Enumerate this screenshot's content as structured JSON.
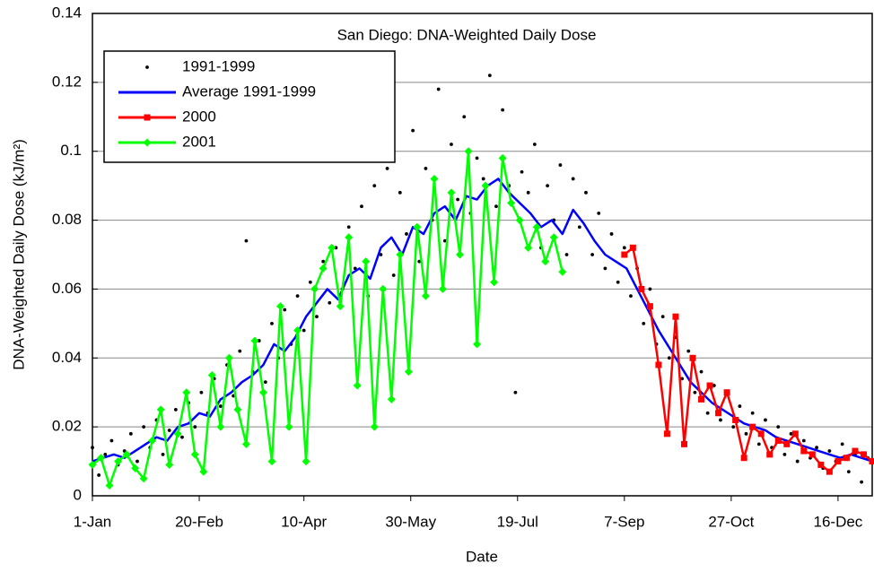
{
  "chart_data": {
    "type": "line",
    "title": "San Diego: DNA-Weighted Daily Dose",
    "x_label": "Date",
    "y_label": "DNA-Weighted Daily Dose (kJ/m²)",
    "xlim": [
      1,
      366
    ],
    "xticks": [
      {
        "value": 1,
        "label": "1-Jan"
      },
      {
        "value": 51,
        "label": "20-Feb"
      },
      {
        "value": 100,
        "label": "10-Apr"
      },
      {
        "value": 150,
        "label": "30-May"
      },
      {
        "value": 200,
        "label": "19-Jul"
      },
      {
        "value": 250,
        "label": "7-Sep"
      },
      {
        "value": 300,
        "label": "27-Oct"
      },
      {
        "value": 350,
        "label": "16-Dec"
      }
    ],
    "ylim": [
      0,
      0.14
    ],
    "yticks": [
      0,
      0.02,
      0.04,
      0.06,
      0.08,
      0.1,
      0.12,
      0.14
    ],
    "grid": true,
    "legend": "upper-left",
    "series": [
      {
        "name": "1991-1999",
        "color": "#000000",
        "line": false,
        "marker": "dot",
        "x": [
          1,
          4,
          7,
          10,
          13,
          16,
          19,
          22,
          25,
          28,
          31,
          34,
          37,
          40,
          43,
          46,
          49,
          52,
          55,
          58,
          61,
          64,
          67,
          70,
          73,
          76,
          79,
          82,
          85,
          88,
          91,
          94,
          97,
          100,
          103,
          106,
          109,
          112,
          115,
          118,
          121,
          124,
          127,
          130,
          133,
          136,
          139,
          142,
          145,
          148,
          151,
          154,
          157,
          160,
          163,
          166,
          169,
          172,
          175,
          178,
          181,
          184,
          187,
          190,
          193,
          196,
          199,
          202,
          205,
          208,
          211,
          214,
          217,
          220,
          223,
          226,
          229,
          232,
          235,
          238,
          241,
          244,
          247,
          250,
          253,
          256,
          259,
          262,
          265,
          268,
          271,
          274,
          277,
          280,
          283,
          286,
          289,
          292,
          295,
          298,
          301,
          304,
          307,
          310,
          313,
          316,
          319,
          322,
          325,
          328,
          331,
          334,
          337,
          340,
          343,
          346,
          349,
          352,
          355,
          358,
          361,
          364
        ],
        "values": [
          0.014,
          0.006,
          0.012,
          0.016,
          0.009,
          0.013,
          0.018,
          0.01,
          0.02,
          0.014,
          0.022,
          0.012,
          0.019,
          0.025,
          0.017,
          0.027,
          0.02,
          0.03,
          0.024,
          0.034,
          0.026,
          0.038,
          0.029,
          0.042,
          0.074,
          0.036,
          0.045,
          0.033,
          0.05,
          0.04,
          0.054,
          0.044,
          0.058,
          0.048,
          0.062,
          0.052,
          0.068,
          0.056,
          0.072,
          0.06,
          0.078,
          0.066,
          0.084,
          0.058,
          0.09,
          0.07,
          0.095,
          0.064,
          0.088,
          0.076,
          0.106,
          0.068,
          0.095,
          0.08,
          0.118,
          0.074,
          0.102,
          0.086,
          0.11,
          0.082,
          0.098,
          0.092,
          0.122,
          0.084,
          0.112,
          0.09,
          0.03,
          0.094,
          0.088,
          0.102,
          0.072,
          0.09,
          0.08,
          0.096,
          0.07,
          0.092,
          0.078,
          0.088,
          0.07,
          0.082,
          0.066,
          0.076,
          0.062,
          0.072,
          0.058,
          0.066,
          0.05,
          0.06,
          0.044,
          0.052,
          0.04,
          0.046,
          0.034,
          0.042,
          0.03,
          0.036,
          0.024,
          0.032,
          0.022,
          0.03,
          0.02,
          0.026,
          0.018,
          0.024,
          0.015,
          0.022,
          0.014,
          0.02,
          0.012,
          0.018,
          0.01,
          0.016,
          0.011,
          0.014,
          0.008,
          0.013,
          0.01,
          0.015,
          0.007,
          0.012,
          0.004,
          0.011
        ]
      },
      {
        "name": "Average 1991-1999",
        "color": "#0000ff",
        "line": true,
        "marker": "none",
        "x": [
          1,
          6,
          11,
          16,
          21,
          26,
          31,
          36,
          41,
          46,
          51,
          56,
          61,
          66,
          71,
          76,
          81,
          86,
          91,
          96,
          101,
          106,
          111,
          116,
          121,
          126,
          131,
          136,
          141,
          146,
          151,
          156,
          161,
          166,
          171,
          176,
          181,
          186,
          191,
          196,
          201,
          206,
          211,
          216,
          221,
          226,
          231,
          236,
          241,
          246,
          251,
          256,
          261,
          266,
          271,
          276,
          281,
          286,
          291,
          296,
          301,
          306,
          311,
          316,
          321,
          326,
          331,
          336,
          341,
          346,
          351,
          356,
          361,
          366
        ],
        "values": [
          0.01,
          0.011,
          0.012,
          0.011,
          0.013,
          0.015,
          0.017,
          0.016,
          0.02,
          0.021,
          0.024,
          0.023,
          0.028,
          0.03,
          0.033,
          0.035,
          0.038,
          0.044,
          0.042,
          0.046,
          0.052,
          0.056,
          0.06,
          0.057,
          0.064,
          0.066,
          0.063,
          0.072,
          0.075,
          0.07,
          0.078,
          0.076,
          0.082,
          0.084,
          0.08,
          0.087,
          0.086,
          0.09,
          0.092,
          0.088,
          0.085,
          0.082,
          0.078,
          0.08,
          0.076,
          0.083,
          0.079,
          0.074,
          0.07,
          0.068,
          0.066,
          0.06,
          0.054,
          0.048,
          0.043,
          0.038,
          0.033,
          0.03,
          0.027,
          0.025,
          0.023,
          0.021,
          0.02,
          0.019,
          0.017,
          0.016,
          0.015,
          0.014,
          0.013,
          0.012,
          0.011,
          0.012,
          0.011,
          0.01
        ]
      },
      {
        "name": "2000",
        "color": "#ff0000",
        "line": true,
        "marker": "square",
        "x": [
          250,
          254,
          258,
          262,
          266,
          270,
          274,
          278,
          282,
          286,
          290,
          294,
          298,
          302,
          306,
          310,
          314,
          318,
          322,
          326,
          330,
          334,
          338,
          342,
          346,
          350,
          354,
          358,
          362,
          366
        ],
        "values": [
          0.07,
          0.072,
          0.06,
          0.055,
          0.038,
          0.018,
          0.052,
          0.015,
          0.04,
          0.028,
          0.032,
          0.024,
          0.03,
          0.022,
          0.011,
          0.02,
          0.018,
          0.012,
          0.016,
          0.015,
          0.018,
          0.013,
          0.012,
          0.009,
          0.007,
          0.01,
          0.011,
          0.013,
          0.012,
          0.01
        ]
      },
      {
        "name": "2001",
        "color": "#00ff00",
        "line": true,
        "marker": "diamond",
        "x": [
          1,
          5,
          9,
          13,
          17,
          21,
          25,
          29,
          33,
          37,
          41,
          45,
          49,
          53,
          57,
          61,
          65,
          69,
          73,
          77,
          81,
          85,
          89,
          93,
          97,
          101,
          105,
          109,
          113,
          117,
          121,
          125,
          129,
          133,
          137,
          141,
          145,
          149,
          153,
          157,
          161,
          165,
          169,
          173,
          177,
          181,
          185,
          189,
          193,
          197,
          201,
          205,
          209,
          213,
          217,
          221
        ],
        "values": [
          0.009,
          0.011,
          0.003,
          0.01,
          0.012,
          0.008,
          0.005,
          0.016,
          0.025,
          0.009,
          0.018,
          0.03,
          0.012,
          0.007,
          0.035,
          0.02,
          0.04,
          0.025,
          0.015,
          0.045,
          0.03,
          0.01,
          0.055,
          0.02,
          0.048,
          0.01,
          0.06,
          0.066,
          0.072,
          0.055,
          0.075,
          0.032,
          0.068,
          0.02,
          0.06,
          0.028,
          0.07,
          0.036,
          0.078,
          0.058,
          0.092,
          0.06,
          0.088,
          0.07,
          0.1,
          0.044,
          0.09,
          0.062,
          0.098,
          0.085,
          0.08,
          0.072,
          0.078,
          0.068,
          0.075,
          0.065
        ]
      }
    ]
  }
}
